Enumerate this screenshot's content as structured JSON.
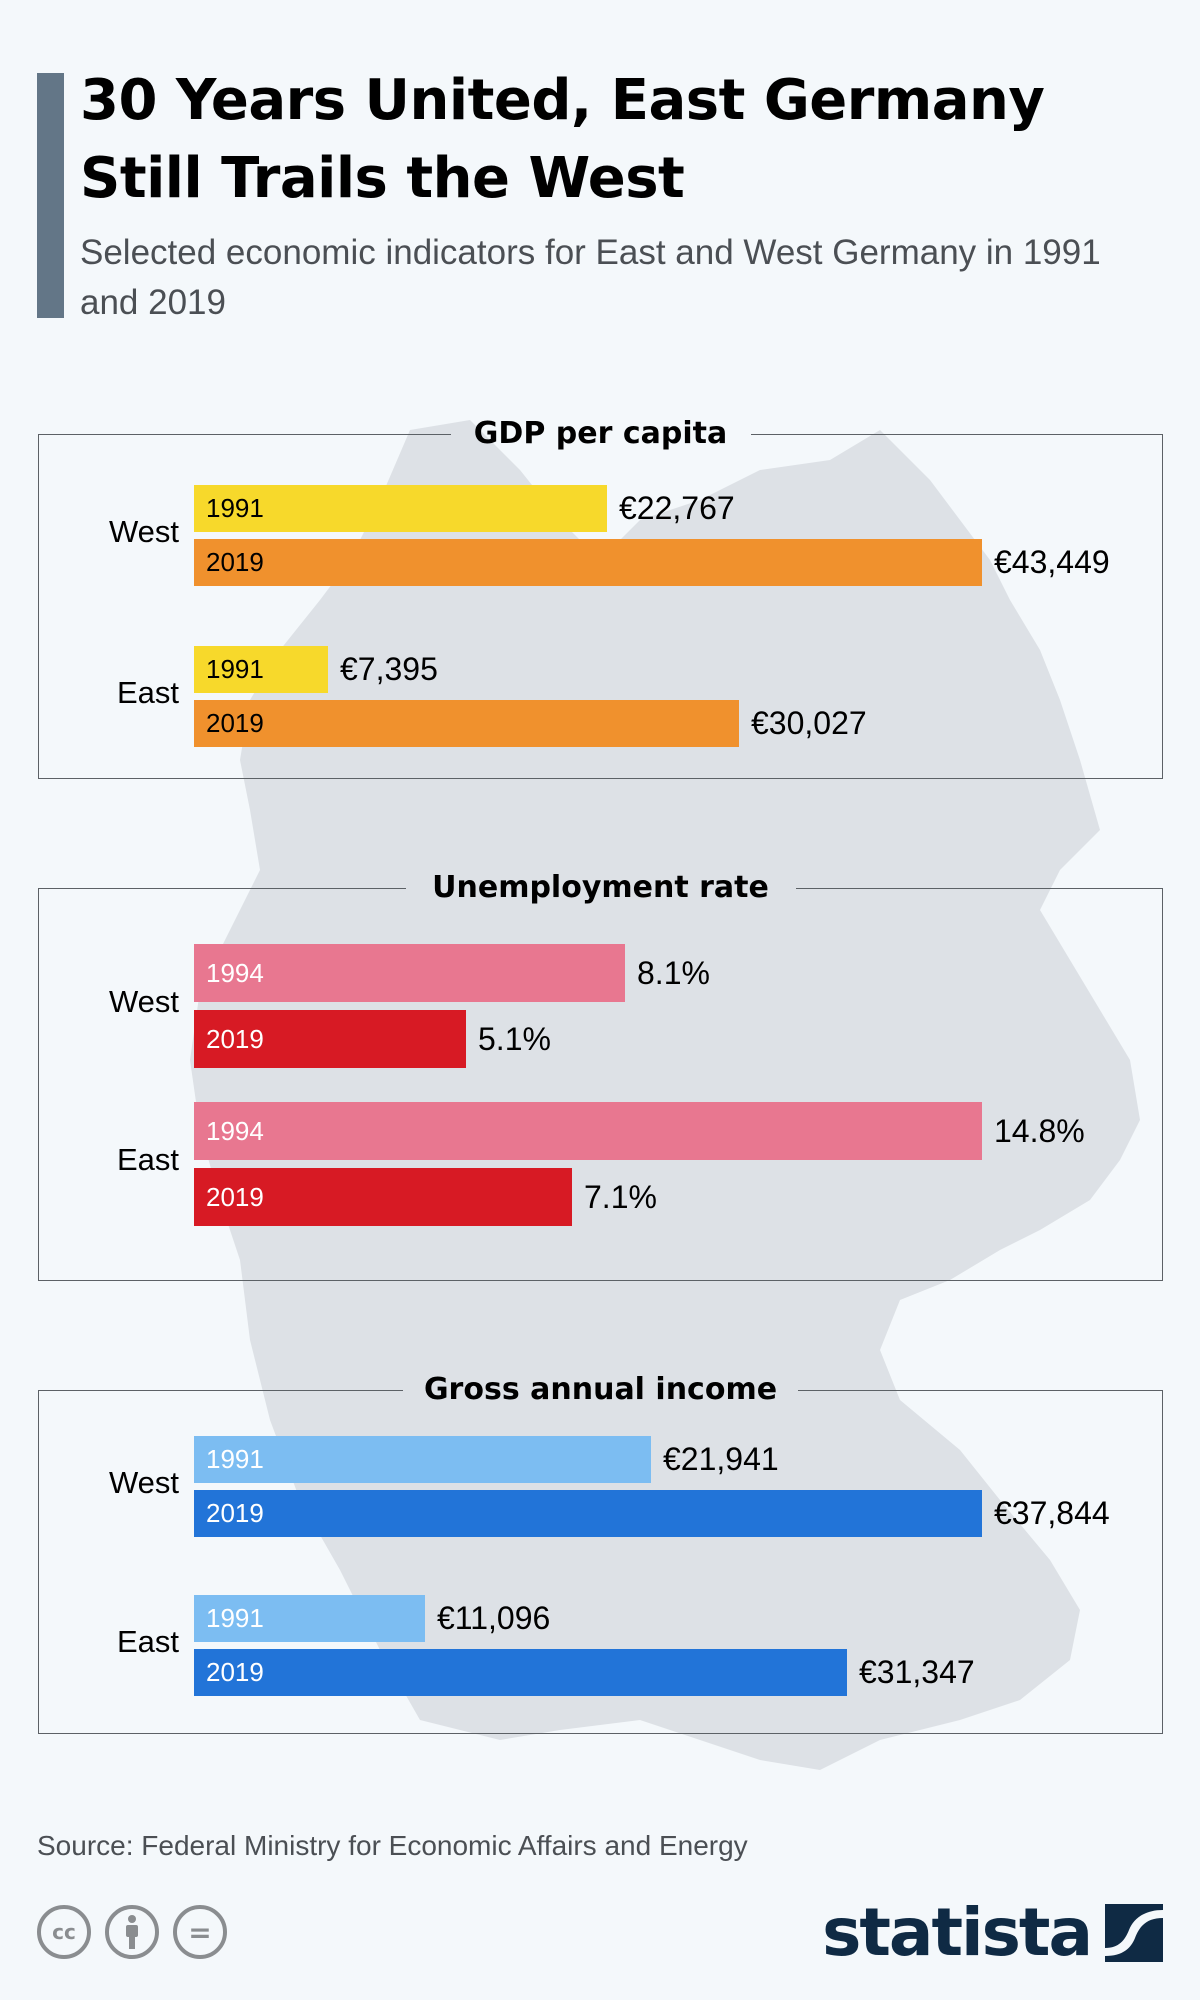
{
  "header": {
    "title": "30 Years United, East Germany Still Trails the West",
    "subtitle": "Selected economic indicators for East and West Germany in 1991 and 2019"
  },
  "colors": {
    "background": "#F4F8FB",
    "accent_bar": "#637687",
    "map": "#DDE1E6",
    "gdp_early": "#F7D92B",
    "gdp_late": "#F0912D",
    "unemp_early": "#E87790",
    "unemp_late": "#D71A24",
    "income_early": "#7CBDF2",
    "income_late": "#2274D8"
  },
  "chart_data": [
    {
      "type": "bar",
      "orientation": "horizontal",
      "title": "GDP per capita",
      "unit": "EUR",
      "categories": [
        "West",
        "East"
      ],
      "series": [
        {
          "name": "1991",
          "values": [
            22767,
            7395
          ],
          "labels": [
            "€22,767",
            "€7,395"
          ],
          "color": "#F7D92B",
          "year_text_color": "#000000"
        },
        {
          "name": "2019",
          "values": [
            43449,
            30027
          ],
          "labels": [
            "€43,449",
            "€30,027"
          ],
          "color": "#F0912D",
          "year_text_color": "#000000"
        }
      ],
      "xlim": [
        0,
        43449
      ]
    },
    {
      "type": "bar",
      "orientation": "horizontal",
      "title": "Unemployment rate",
      "unit": "%",
      "categories": [
        "West",
        "East"
      ],
      "series": [
        {
          "name": "1994",
          "values": [
            8.1,
            14.8
          ],
          "labels": [
            "8.1%",
            "14.8%"
          ],
          "color": "#E87790",
          "year_text_color": "#ffffff"
        },
        {
          "name": "2019",
          "values": [
            5.1,
            7.1
          ],
          "labels": [
            "5.1%",
            "7.1%"
          ],
          "color": "#D71A24",
          "year_text_color": "#ffffff"
        }
      ],
      "xlim": [
        0,
        14.8
      ]
    },
    {
      "type": "bar",
      "orientation": "horizontal",
      "title": "Gross annual income",
      "unit": "EUR",
      "categories": [
        "West",
        "East"
      ],
      "series": [
        {
          "name": "1991",
          "values": [
            21941,
            11096
          ],
          "labels": [
            "€21,941",
            "€11,096"
          ],
          "color": "#7CBDF2",
          "year_text_color": "#ffffff"
        },
        {
          "name": "2019",
          "values": [
            37844,
            31347
          ],
          "labels": [
            "€37,844",
            "€31,347"
          ],
          "color": "#2274D8",
          "year_text_color": "#ffffff"
        }
      ],
      "xlim": [
        0,
        37844
      ]
    }
  ],
  "footer": {
    "source": "Source: Federal Ministry for Economic Affairs and Energy",
    "license_icons": [
      "cc-icon",
      "attribution-icon",
      "no-derivatives-icon"
    ],
    "cc_label": "cc",
    "nd_label": "=",
    "logo_text": "statista"
  }
}
